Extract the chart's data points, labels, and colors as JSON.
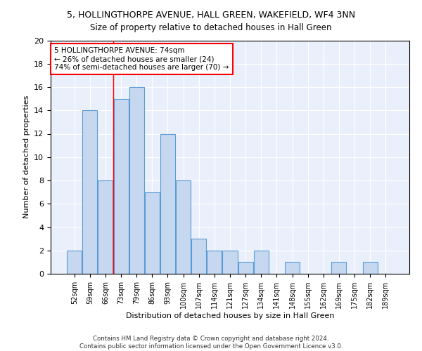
{
  "title": "5, HOLLINGTHORPE AVENUE, HALL GREEN, WAKEFIELD, WF4 3NN",
  "subtitle": "Size of property relative to detached houses in Hall Green",
  "xlabel": "Distribution of detached houses by size in Hall Green",
  "ylabel": "Number of detached properties",
  "bar_color": "#c5d8f0",
  "bar_edge_color": "#5b9bd5",
  "background_color": "#eaf0fb",
  "grid_color": "#ffffff",
  "categories": [
    "52sqm",
    "59sqm",
    "66sqm",
    "73sqm",
    "79sqm",
    "86sqm",
    "93sqm",
    "100sqm",
    "107sqm",
    "114sqm",
    "121sqm",
    "127sqm",
    "134sqm",
    "141sqm",
    "148sqm",
    "155sqm",
    "162sqm",
    "169sqm",
    "175sqm",
    "182sqm",
    "189sqm"
  ],
  "values": [
    2,
    14,
    8,
    15,
    16,
    7,
    12,
    8,
    3,
    2,
    2,
    1,
    2,
    0,
    1,
    0,
    0,
    1,
    0,
    1,
    0
  ],
  "ylim": [
    0,
    20
  ],
  "yticks": [
    0,
    2,
    4,
    6,
    8,
    10,
    12,
    14,
    16,
    18,
    20
  ],
  "annotation_text": "5 HOLLINGTHORPE AVENUE: 74sqm\n← 26% of detached houses are smaller (24)\n74% of semi-detached houses are larger (70) →",
  "footer_line1": "Contains HM Land Registry data © Crown copyright and database right 2024.",
  "footer_line2": "Contains public sector information licensed under the Open Government Licence v3.0.",
  "red_line_index": 3
}
